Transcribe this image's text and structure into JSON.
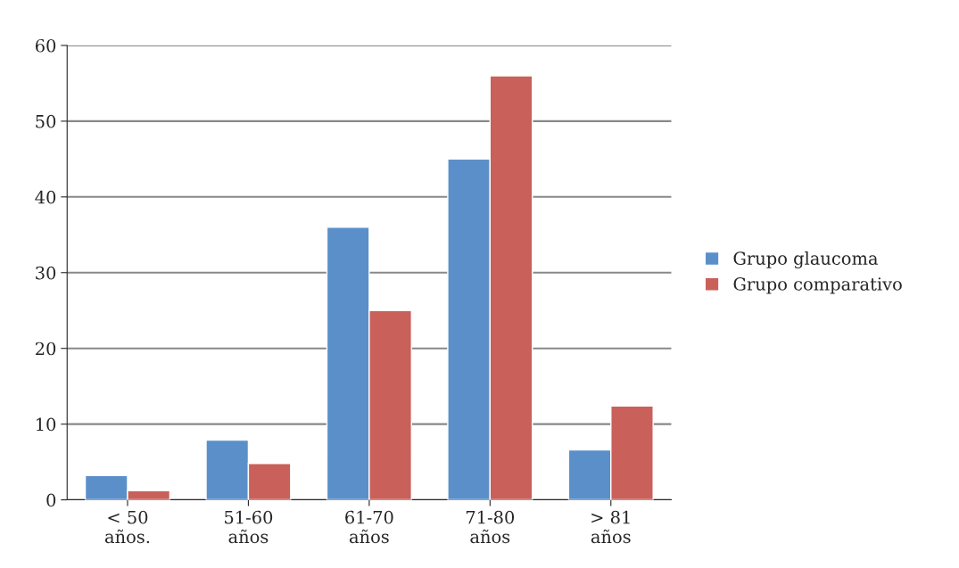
{
  "chart_data": {
    "type": "bar",
    "categories": [
      "< 50 años.",
      "51-60 años",
      "61-70 años",
      "71-80 años",
      "> 81 años"
    ],
    "series": [
      {
        "name": "Grupo glaucoma",
        "color": "#5b8fc9",
        "values": [
          3.2,
          7.9,
          36,
          45,
          6.6
        ]
      },
      {
        "name": "Grupo comparativo",
        "color": "#c9605a",
        "values": [
          1.2,
          4.8,
          25,
          56,
          12.4
        ]
      }
    ],
    "ylim": [
      0,
      60
    ],
    "yticks": [
      0,
      10,
      20,
      30,
      40,
      50,
      60
    ],
    "grid": "y",
    "legend": "right"
  }
}
